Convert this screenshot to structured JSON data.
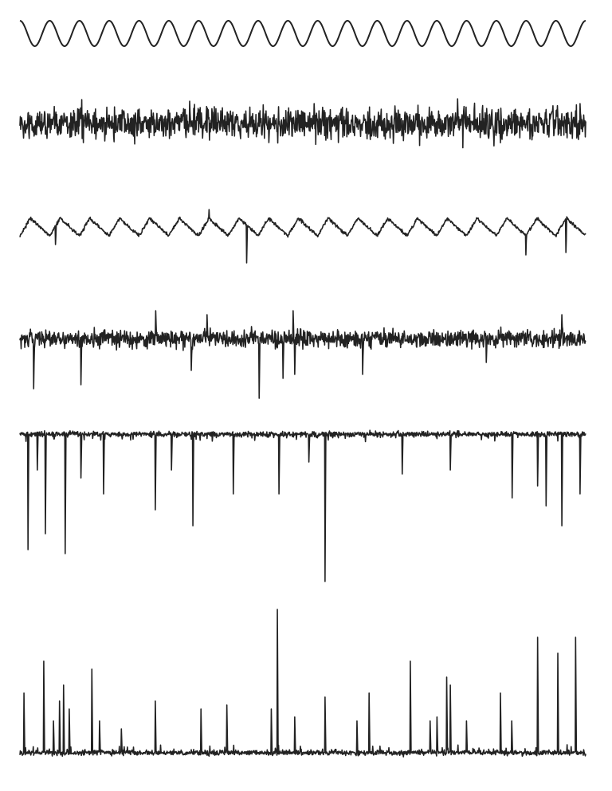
{
  "chart_data": {
    "type": "line",
    "title": "",
    "xlabel": "",
    "ylabel": "",
    "axes_visible": false,
    "grid": false,
    "legend": "none",
    "line_color": "#222222",
    "background": "#ffffff",
    "xlim": [
      0,
      100
    ],
    "series": [
      {
        "kind": "periodic",
        "cycles": 19,
        "amplitude": 16,
        "noise": 0,
        "spikes": []
      },
      {
        "kind": "noise",
        "amplitude": 16,
        "noise": 10,
        "spikes": [
          [
            15,
            -22
          ],
          [
            30,
            28
          ],
          [
            44,
            -24
          ],
          [
            52,
            25
          ],
          [
            66,
            -25
          ],
          [
            99,
            25
          ]
        ]
      },
      {
        "kind": "periodic-noisy",
        "cycles": 19,
        "amplitude": 11,
        "noise": 3,
        "spikes": [
          [
            6.3,
            -22
          ],
          [
            33.4,
            22
          ],
          [
            40.1,
            -45
          ],
          [
            89.4,
            -35
          ],
          [
            96.5,
            -32
          ]
        ]
      },
      {
        "kind": "noise",
        "amplitude": 9,
        "noise": 6,
        "spikes": [
          [
            2.4,
            -63
          ],
          [
            10.8,
            -58
          ],
          [
            24.0,
            35
          ],
          [
            30.3,
            -40
          ],
          [
            33.1,
            30
          ],
          [
            42.3,
            -75
          ],
          [
            46.5,
            -50
          ],
          [
            48.3,
            35
          ],
          [
            48.6,
            -45
          ],
          [
            60.6,
            -45
          ],
          [
            82.4,
            -30
          ],
          [
            95.8,
            30
          ]
        ]
      },
      {
        "kind": "spikes-down",
        "amplitude": 4,
        "noise": 3,
        "spikes": [
          [
            1.4,
            -145
          ],
          [
            3.1,
            -45
          ],
          [
            4.5,
            -125
          ],
          [
            8.0,
            -150
          ],
          [
            10.8,
            -55
          ],
          [
            14.8,
            -75
          ],
          [
            23.9,
            -95
          ],
          [
            26.8,
            -45
          ],
          [
            30.6,
            -115
          ],
          [
            37.7,
            -75
          ],
          [
            45.8,
            -75
          ],
          [
            51.1,
            -35
          ],
          [
            53.9,
            -185
          ],
          [
            67.6,
            -50
          ],
          [
            76.1,
            -45
          ],
          [
            87.0,
            -80
          ],
          [
            91.5,
            -65
          ],
          [
            93.0,
            -90
          ],
          [
            95.8,
            -115
          ],
          [
            99.0,
            -75
          ]
        ]
      },
      {
        "kind": "spikes-up",
        "amplitude": 4,
        "noise": 3,
        "spikes": [
          [
            0.7,
            75
          ],
          [
            4.2,
            115
          ],
          [
            5.9,
            40
          ],
          [
            7.0,
            65
          ],
          [
            7.7,
            85
          ],
          [
            8.7,
            55
          ],
          [
            12.7,
            105
          ],
          [
            14.1,
            40
          ],
          [
            17.9,
            30
          ],
          [
            23.9,
            65
          ],
          [
            32.0,
            55
          ],
          [
            36.6,
            60
          ],
          [
            44.4,
            55
          ],
          [
            45.5,
            180
          ],
          [
            48.6,
            45
          ],
          [
            53.9,
            70
          ],
          [
            59.6,
            40
          ],
          [
            61.7,
            75
          ],
          [
            69.0,
            115
          ],
          [
            72.5,
            40
          ],
          [
            73.7,
            45
          ],
          [
            75.4,
            95
          ],
          [
            76.1,
            85
          ],
          [
            78.9,
            40
          ],
          [
            84.9,
            75
          ],
          [
            86.9,
            40
          ],
          [
            91.5,
            145
          ],
          [
            95.1,
            125
          ],
          [
            98.2,
            145
          ]
        ]
      }
    ]
  }
}
